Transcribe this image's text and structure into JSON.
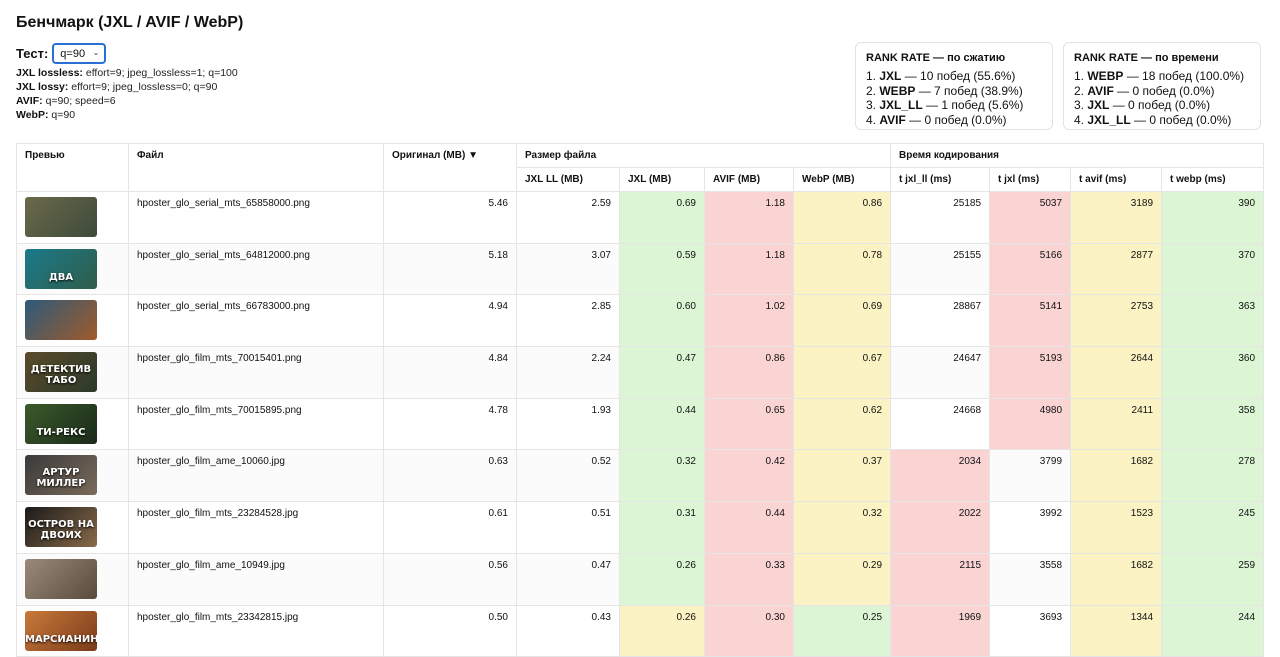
{
  "page": {
    "title": "Бенчмарк (JXL / AVIF / WebP)"
  },
  "test": {
    "label": "Тест:",
    "selected": "q=90"
  },
  "params": [
    {
      "name": "JXL lossless:",
      "value": "effort=9; jpeg_lossless=1; q=100"
    },
    {
      "name": "JXL lossy:",
      "value": "effort=9; jpeg_lossless=0; q=90"
    },
    {
      "name": "AVIF:",
      "value": "q=90; speed=6"
    },
    {
      "name": "WebP:",
      "value": "q=90"
    }
  ],
  "rank_compression": {
    "title": "RANK RATE — по сжатию",
    "items": [
      {
        "pos": "1.",
        "name": "JXL",
        "text": "— 10 побед (55.6%)"
      },
      {
        "pos": "2.",
        "name": "WEBP",
        "text": "— 7 побед (38.9%)"
      },
      {
        "pos": "3.",
        "name": "JXL_LL",
        "text": "— 1 побед (5.6%)"
      },
      {
        "pos": "4.",
        "name": "AVIF",
        "text": "— 0 побед (0.0%)"
      }
    ]
  },
  "rank_time": {
    "title": "RANK RATE — по времени",
    "items": [
      {
        "pos": "1.",
        "name": "WEBP",
        "text": "— 18 побед (100.0%)"
      },
      {
        "pos": "2.",
        "name": "AVIF",
        "text": "— 0 побед (0.0%)"
      },
      {
        "pos": "3.",
        "name": "JXL",
        "text": "— 0 побед (0.0%)"
      },
      {
        "pos": "4.",
        "name": "JXL_LL",
        "text": "— 0 побед (0.0%)"
      }
    ]
  },
  "table": {
    "headers": {
      "preview": "Превью",
      "file": "Файл",
      "original": "Оригинал (MB) ▼",
      "size_group": "Размер файла",
      "time_group": "Время кодирования",
      "sub": [
        "JXL LL (MB)",
        "JXL (MB)",
        "AVIF (MB)",
        "WebP (MB)",
        "t jxl_ll (ms)",
        "t jxl (ms)",
        "t avif (ms)",
        "t webp (ms)"
      ]
    },
    "rows": [
      {
        "thumb_text": "",
        "thumb_colors": [
          "#6b6a4a",
          "#3d4a3a"
        ],
        "file": "hposter_glo_serial_mts_65858000.png",
        "vals": [
          "5.46",
          "2.59",
          "0.69",
          "1.18",
          "0.86",
          "25185",
          "5037",
          "3189",
          "390"
        ],
        "colors": [
          "plain",
          "plain",
          "g",
          "r",
          "y",
          "plain",
          "r",
          "y",
          "g"
        ]
      },
      {
        "thumb_text": "ДВА",
        "thumb_colors": [
          "#1b7a8a",
          "#2f5d4a"
        ],
        "file": "hposter_glo_serial_mts_64812000.png",
        "vals": [
          "5.18",
          "3.07",
          "0.59",
          "1.18",
          "0.78",
          "25155",
          "5166",
          "2877",
          "370"
        ],
        "colors": [
          "plain",
          "plain",
          "g",
          "r",
          "y",
          "plain",
          "r",
          "y",
          "g"
        ]
      },
      {
        "thumb_text": "",
        "thumb_colors": [
          "#2c5a7a",
          "#a05a2a"
        ],
        "file": "hposter_glo_serial_mts_66783000.png",
        "vals": [
          "4.94",
          "2.85",
          "0.60",
          "1.02",
          "0.69",
          "28867",
          "5141",
          "2753",
          "363"
        ],
        "colors": [
          "plain",
          "plain",
          "g",
          "r",
          "y",
          "plain",
          "r",
          "y",
          "g"
        ]
      },
      {
        "thumb_text": "ДЕТЕКТИВ ТАБО",
        "thumb_colors": [
          "#5a4a2a",
          "#2a3a2a"
        ],
        "file": "hposter_glo_film_mts_70015401.png",
        "vals": [
          "4.84",
          "2.24",
          "0.47",
          "0.86",
          "0.67",
          "24647",
          "5193",
          "2644",
          "360"
        ],
        "colors": [
          "plain",
          "plain",
          "g",
          "r",
          "y",
          "plain",
          "r",
          "y",
          "g"
        ]
      },
      {
        "thumb_text": "ТИ-РЕКС",
        "thumb_colors": [
          "#3a5a2a",
          "#1a2a1a"
        ],
        "file": "hposter_glo_film_mts_70015895.png",
        "vals": [
          "4.78",
          "1.93",
          "0.44",
          "0.65",
          "0.62",
          "24668",
          "4980",
          "2411",
          "358"
        ],
        "colors": [
          "plain",
          "plain",
          "g",
          "r",
          "y",
          "plain",
          "r",
          "y",
          "g"
        ]
      },
      {
        "thumb_text": "АРТУР МИЛЛЕР",
        "thumb_colors": [
          "#3a3a3a",
          "#7a6a5a"
        ],
        "file": "hposter_glo_film_ame_10060.jpg",
        "vals": [
          "0.63",
          "0.52",
          "0.32",
          "0.42",
          "0.37",
          "2034",
          "3799",
          "1682",
          "278"
        ],
        "colors": [
          "plain",
          "plain",
          "g",
          "r",
          "y",
          "r",
          "plain",
          "y",
          "g"
        ]
      },
      {
        "thumb_text": "ОСТРОВ НА ДВОИХ",
        "thumb_colors": [
          "#1a1a1a",
          "#8a6a4a"
        ],
        "file": "hposter_glo_film_mts_23284528.jpg",
        "vals": [
          "0.61",
          "0.51",
          "0.31",
          "0.44",
          "0.32",
          "2022",
          "3992",
          "1523",
          "245"
        ],
        "colors": [
          "plain",
          "plain",
          "g",
          "r",
          "y",
          "r",
          "plain",
          "y",
          "g"
        ]
      },
      {
        "thumb_text": "",
        "thumb_colors": [
          "#9a8a7a",
          "#5a4a3a"
        ],
        "file": "hposter_glo_film_ame_10949.jpg",
        "vals": [
          "0.56",
          "0.47",
          "0.26",
          "0.33",
          "0.29",
          "2115",
          "3558",
          "1682",
          "259"
        ],
        "colors": [
          "plain",
          "plain",
          "g",
          "r",
          "y",
          "r",
          "plain",
          "y",
          "g"
        ]
      },
      {
        "thumb_text": "МАРСИАНИН",
        "thumb_colors": [
          "#c87a3a",
          "#7a3a1a"
        ],
        "file": "hposter_glo_film_mts_23342815.jpg",
        "vals": [
          "0.50",
          "0.43",
          "0.26",
          "0.30",
          "0.25",
          "1969",
          "3693",
          "1344",
          "244"
        ],
        "colors": [
          "plain",
          "plain",
          "y",
          "r",
          "g",
          "r",
          "plain",
          "y",
          "g"
        ]
      }
    ]
  }
}
